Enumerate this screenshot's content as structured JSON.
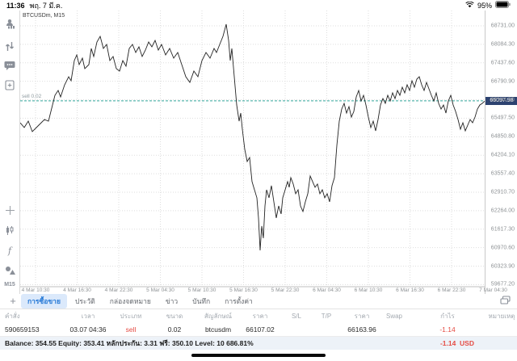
{
  "status": {
    "time": "11:36",
    "date": "พฤ. 7 มี.ค.",
    "battery": "95%"
  },
  "sidebar": {
    "icons": [
      {
        "name": "quotes-icon"
      },
      {
        "name": "trade-icon"
      },
      {
        "name": "chat-icon"
      },
      {
        "name": "new-order-icon"
      },
      {
        "name": "crosshair-icon"
      },
      {
        "name": "candles-icon"
      },
      {
        "name": "indicators-icon"
      },
      {
        "name": "objects-icon"
      }
    ],
    "timeframe": "M15"
  },
  "chart_data": {
    "type": "line",
    "symbol_label": "BTCUSDm, M15",
    "position_label": "sell 0.02",
    "position_price": 66107.02,
    "current_price": 66097.98,
    "current_price_label": "66097.98",
    "accent_teal": "#35a79c",
    "price_box_color": "#2d4270",
    "line_color": "#222222",
    "price_axis_labels": [
      "68731.00",
      "68084.30",
      "67437.60",
      "66790.90",
      "66144.20",
      "65497.50",
      "64850.80",
      "64204.10",
      "63557.40",
      "62910.70",
      "62264.00",
      "61617.30",
      "60970.60",
      "60323.90",
      "59677.20"
    ],
    "price_axis_top": 68731.0,
    "price_axis_step": 646.7,
    "time_axis_labels": [
      "4 Mar 10:30",
      "4 Mar 16:30",
      "4 Mar 22:30",
      "5 Mar 04:30",
      "5 Mar 10:30",
      "5 Mar 16:30",
      "5 Mar 22:30",
      "6 Mar 04:30",
      "6 Mar 10:30",
      "6 Mar 16:30",
      "6 Mar 22:30",
      "7 Mar 04:30"
    ],
    "series_x_price": [
      [
        0,
        65341
      ],
      [
        5,
        65172
      ],
      [
        10,
        65398
      ],
      [
        15,
        65030
      ],
      [
        23,
        65256
      ],
      [
        30,
        65454
      ],
      [
        35,
        65398
      ],
      [
        40,
        65962
      ],
      [
        43,
        66301
      ],
      [
        47,
        66471
      ],
      [
        50,
        66245
      ],
      [
        55,
        66668
      ],
      [
        60,
        66951
      ],
      [
        63,
        66810
      ],
      [
        67,
        67516
      ],
      [
        70,
        67714
      ],
      [
        73,
        67375
      ],
      [
        77,
        67601
      ],
      [
        80,
        67234
      ],
      [
        85,
        67375
      ],
      [
        88,
        67940
      ],
      [
        91,
        67657
      ],
      [
        95,
        68166
      ],
      [
        99,
        68364
      ],
      [
        103,
        67940
      ],
      [
        107,
        68081
      ],
      [
        111,
        67516
      ],
      [
        115,
        67657
      ],
      [
        119,
        67234
      ],
      [
        123,
        67149
      ],
      [
        127,
        67516
      ],
      [
        131,
        67319
      ],
      [
        135,
        67940
      ],
      [
        139,
        68081
      ],
      [
        143,
        67798
      ],
      [
        147,
        67996
      ],
      [
        151,
        67657
      ],
      [
        155,
        67883
      ],
      [
        159,
        68166
      ],
      [
        163,
        67996
      ],
      [
        167,
        68222
      ],
      [
        171,
        67883
      ],
      [
        175,
        68081
      ],
      [
        180,
        67714
      ],
      [
        185,
        67940
      ],
      [
        190,
        67601
      ],
      [
        195,
        67798
      ],
      [
        200,
        67375
      ],
      [
        205,
        66951
      ],
      [
        210,
        66754
      ],
      [
        215,
        67149
      ],
      [
        220,
        66951
      ],
      [
        225,
        67516
      ],
      [
        230,
        67798
      ],
      [
        235,
        67601
      ],
      [
        240,
        67940
      ],
      [
        243,
        67798
      ],
      [
        247,
        68081
      ],
      [
        251,
        68364
      ],
      [
        255,
        68788
      ],
      [
        258,
        68222
      ],
      [
        260,
        67516
      ],
      [
        262,
        67940
      ],
      [
        265,
        66951
      ],
      [
        268,
        65962
      ],
      [
        271,
        65397
      ],
      [
        273,
        65680
      ],
      [
        275,
        65115
      ],
      [
        278,
        64409
      ],
      [
        281,
        63985
      ],
      [
        284,
        64126
      ],
      [
        287,
        63279
      ],
      [
        290,
        62996
      ],
      [
        293,
        62714
      ],
      [
        295,
        62008
      ],
      [
        297,
        60876
      ],
      [
        299,
        61725
      ],
      [
        301,
        61302
      ],
      [
        303,
        62431
      ],
      [
        305,
        62996
      ],
      [
        308,
        62714
      ],
      [
        311,
        63138
      ],
      [
        314,
        62573
      ],
      [
        317,
        62008
      ],
      [
        320,
        62431
      ],
      [
        323,
        62149
      ],
      [
        325,
        62714
      ],
      [
        328,
        62996
      ],
      [
        331,
        63279
      ],
      [
        333,
        63081
      ],
      [
        335,
        63420
      ],
      [
        338,
        63194
      ],
      [
        341,
        62855
      ],
      [
        344,
        62996
      ],
      [
        347,
        62431
      ],
      [
        350,
        62234
      ],
      [
        353,
        62573
      ],
      [
        356,
        62855
      ],
      [
        359,
        63477
      ],
      [
        362,
        63279
      ],
      [
        365,
        63081
      ],
      [
        368,
        63194
      ],
      [
        371,
        62855
      ],
      [
        374,
        62996
      ],
      [
        377,
        62714
      ],
      [
        380,
        62855
      ],
      [
        383,
        62573
      ],
      [
        386,
        63138
      ],
      [
        389,
        63420
      ],
      [
        392,
        64550
      ],
      [
        395,
        65397
      ],
      [
        398,
        65821
      ],
      [
        401,
        66019
      ],
      [
        404,
        65680
      ],
      [
        407,
        65906
      ],
      [
        410,
        65538
      ],
      [
        413,
        65736
      ],
      [
        416,
        66245
      ],
      [
        419,
        66471
      ],
      [
        422,
        66104
      ],
      [
        425,
        66301
      ],
      [
        428,
        65962
      ],
      [
        431,
        65538
      ],
      [
        434,
        65171
      ],
      [
        437,
        65397
      ],
      [
        440,
        65058
      ],
      [
        443,
        65454
      ],
      [
        446,
        65962
      ],
      [
        449,
        66188
      ],
      [
        452,
        66019
      ],
      [
        455,
        66301
      ],
      [
        458,
        66104
      ],
      [
        461,
        66386
      ],
      [
        464,
        66188
      ],
      [
        467,
        66471
      ],
      [
        470,
        66301
      ],
      [
        473,
        66584
      ],
      [
        476,
        66386
      ],
      [
        479,
        66668
      ],
      [
        482,
        66471
      ],
      [
        485,
        66810
      ],
      [
        488,
        66584
      ],
      [
        491,
        66866
      ],
      [
        494,
        66951
      ],
      [
        497,
        66668
      ],
      [
        500,
        66471
      ],
      [
        503,
        66753
      ],
      [
        506,
        66527
      ],
      [
        509,
        66301
      ],
      [
        512,
        66104
      ],
      [
        515,
        66386
      ],
      [
        518,
        66019
      ],
      [
        521,
        65821
      ],
      [
        524,
        65962
      ],
      [
        527,
        65680
      ],
      [
        530,
        66104
      ],
      [
        533,
        66301
      ],
      [
        536,
        65962
      ],
      [
        539,
        65736
      ],
      [
        542,
        65454
      ],
      [
        545,
        65115
      ],
      [
        548,
        65341
      ],
      [
        551,
        65058
      ],
      [
        554,
        65256
      ],
      [
        557,
        65454
      ],
      [
        560,
        65341
      ],
      [
        563,
        65538
      ],
      [
        566,
        65821
      ],
      [
        569,
        65962
      ],
      [
        572,
        66019
      ],
      [
        575,
        66098
      ]
    ]
  },
  "tab_bar": {
    "tabs": [
      "การซื้อขาย",
      "ประวัติ",
      "กล่องจดหมาย",
      "ข่าว",
      "บันทึก",
      "การตั้งค่า"
    ],
    "active_index": 0
  },
  "table": {
    "headers": [
      "คำสั่ง",
      "เวลา",
      "ประเภท",
      "ขนาด",
      "สัญลักษณ์",
      "ราคา",
      "S/L",
      "T/P",
      "ราคา",
      "Swap",
      "กำไร",
      "หมายเหตุ"
    ],
    "rows": [
      {
        "cells": [
          "590659153",
          "03.07 04:36",
          "sell",
          "0.02",
          "btcusdm",
          "66107.02",
          "",
          "",
          "66163.96",
          "",
          "-1.14",
          ""
        ],
        "red_cells": [
          2,
          10
        ]
      }
    ]
  },
  "account": {
    "summary": "Balance: 354.55 Equity: 353.41 หลักประกัน: 3.31 ฟรี: 350.10 Level: 10 686.81%",
    "profit": "-1.14",
    "currency": "USD",
    "profit_color": "#e54c44"
  }
}
